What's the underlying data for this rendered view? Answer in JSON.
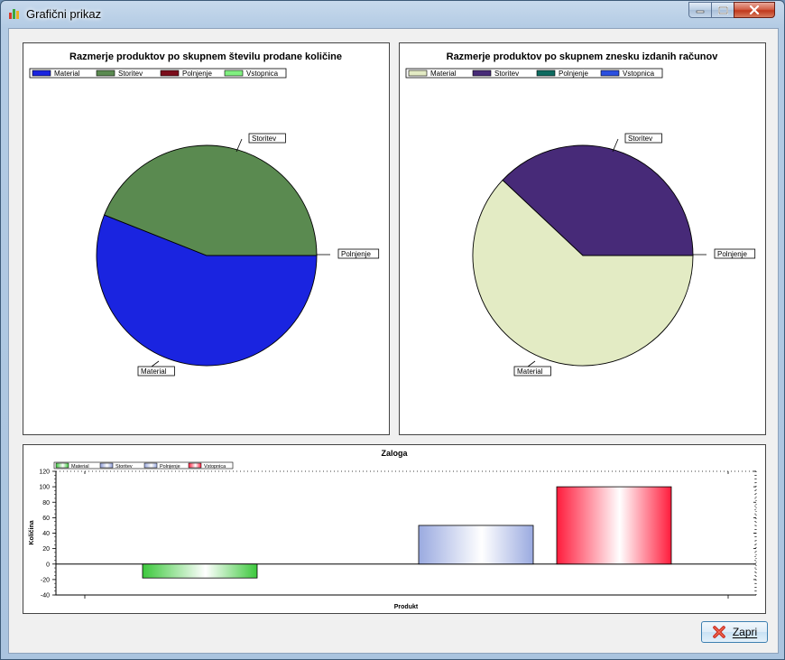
{
  "window": {
    "title": "Grafični prikaz"
  },
  "buttons": {
    "close_label": "Zapri"
  },
  "colors": {
    "material": "#1a24e0",
    "storitev": "#5a8a50",
    "polnjenje": "#7b0d1b",
    "vstopnica": "#80f080"
  },
  "chart_data": [
    {
      "type": "pie",
      "title": "Razmerje produktov po skupnem številu prodane količine",
      "legend_placement": "top-left",
      "series": [
        {
          "name": "Material",
          "value": 56,
          "color": "#1a24e0"
        },
        {
          "name": "Storitev",
          "value": 44,
          "color": "#5a8a50"
        },
        {
          "name": "Polnjenje",
          "value": 0,
          "color": "#7b0d1b"
        },
        {
          "name": "Vstopnica",
          "value": 0,
          "color": "#80f080"
        }
      ],
      "slice_labels": [
        "Material",
        "Storitev",
        "Polnjenje"
      ]
    },
    {
      "type": "pie",
      "title": "Razmerje produktov po skupnem znesku izdanih računov",
      "legend_placement": "top-left",
      "series": [
        {
          "name": "Material",
          "value": 62,
          "color": "#e3ebc4"
        },
        {
          "name": "Storitev",
          "value": 38,
          "color": "#472a78"
        },
        {
          "name": "Polnjenje",
          "value": 0,
          "color": "#0d6b60"
        },
        {
          "name": "Vstopnica",
          "value": 0,
          "color": "#2a4fe0"
        }
      ],
      "slice_labels": [
        "Material",
        "Storitev",
        "Polnjenje"
      ]
    },
    {
      "type": "bar",
      "title": "Zaloga",
      "xlabel": "Produkt",
      "ylabel": "Količina",
      "ylim": [
        -40,
        120
      ],
      "yticks": [
        -40,
        -20,
        0,
        20,
        40,
        60,
        80,
        100,
        120
      ],
      "grid": false,
      "legend_placement": "top-left",
      "series": [
        {
          "name": "Material",
          "value": -18,
          "color": "#3cc83c"
        },
        {
          "name": "Storitev",
          "value": 0,
          "color": "#8c9cd8"
        },
        {
          "name": "Polnjenje",
          "value": 50,
          "color": "#9aaae0"
        },
        {
          "name": "Vstopnica",
          "value": 100,
          "color": "#ff1c3c"
        }
      ]
    }
  ]
}
